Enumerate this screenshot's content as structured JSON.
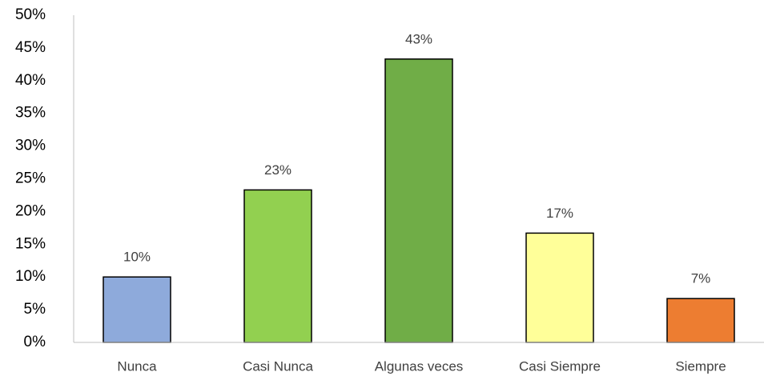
{
  "chart_data": {
    "type": "bar",
    "categories": [
      "Nunca",
      "Casi Nunca",
      "Algunas veces",
      "Casi Siempre",
      "Siempre"
    ],
    "values": [
      10,
      23.3,
      43.3,
      16.7,
      6.7
    ],
    "value_labels": [
      "10%",
      "23%",
      "43%",
      "17%",
      "7%"
    ],
    "colors": [
      "#8eaadb",
      "#92d050",
      "#70ad47",
      "#ffff99",
      "#ed7d31"
    ],
    "ylim": [
      0,
      50
    ],
    "yticks": [
      {
        "value": 0,
        "label": "0%"
      },
      {
        "value": 5,
        "label": "5%"
      },
      {
        "value": 10,
        "label": "10%"
      },
      {
        "value": 15,
        "label": "15%"
      },
      {
        "value": 20,
        "label": "20%"
      },
      {
        "value": 25,
        "label": "25%"
      },
      {
        "value": 30,
        "label": "30%"
      },
      {
        "value": 35,
        "label": "35%"
      },
      {
        "value": 40,
        "label": "40%"
      },
      {
        "value": 45,
        "label": "45%"
      },
      {
        "value": 50,
        "label": "50%"
      }
    ],
    "grid": false
  }
}
